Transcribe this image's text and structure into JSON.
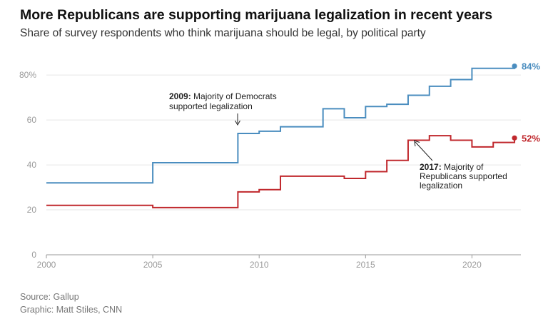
{
  "header": {
    "title": "More Republicans are supporting marijuana legalization in recent years",
    "subtitle": "Share of survey respondents who think marijuana should be legal, by political party"
  },
  "footer": {
    "source": "Source: Gallup",
    "credit": "Graphic: Matt Stiles, CNN"
  },
  "chart_data": {
    "type": "line",
    "step": true,
    "xlim": [
      2000,
      2022.3
    ],
    "ylim": [
      0,
      88
    ],
    "x_ticks": [
      2000,
      2005,
      2010,
      2015,
      2020
    ],
    "x_tick_labels": [
      "2000",
      "2005",
      "2010",
      "2015",
      "2020"
    ],
    "y_ticks": [
      0,
      20,
      40,
      60,
      80
    ],
    "y_tick_labels": [
      "0",
      "20",
      "40",
      "60",
      "80%"
    ],
    "grid": true,
    "series": [
      {
        "key": "dem",
        "color": "#4a8dbf",
        "end_label": "84%",
        "x": [
          2000,
          2005,
          2009,
          2010,
          2011,
          2013,
          2014,
          2015,
          2016,
          2017,
          2018,
          2019,
          2020,
          2022
        ],
        "y": [
          32,
          41,
          54,
          55,
          57,
          65,
          61,
          66,
          67,
          71,
          75,
          78,
          83,
          84
        ]
      },
      {
        "key": "rep",
        "color": "#c0282d",
        "end_label": "52%",
        "x": [
          2000,
          2005,
          2009,
          2010,
          2011,
          2014,
          2015,
          2016,
          2017,
          2018,
          2019,
          2020,
          2021,
          2022
        ],
        "y": [
          22,
          21,
          28,
          29,
          35,
          34,
          37,
          42,
          51,
          53,
          51,
          48,
          50,
          52
        ]
      }
    ],
    "annotations": [
      {
        "key": "dem2009",
        "bold": "2009:",
        "lines": [
          " Majority of Democrats",
          "supported legalization"
        ]
      },
      {
        "key": "rep2017",
        "bold": "2017:",
        "lines": [
          " Majority of",
          "Republicans supported",
          "legalization"
        ]
      }
    ]
  }
}
